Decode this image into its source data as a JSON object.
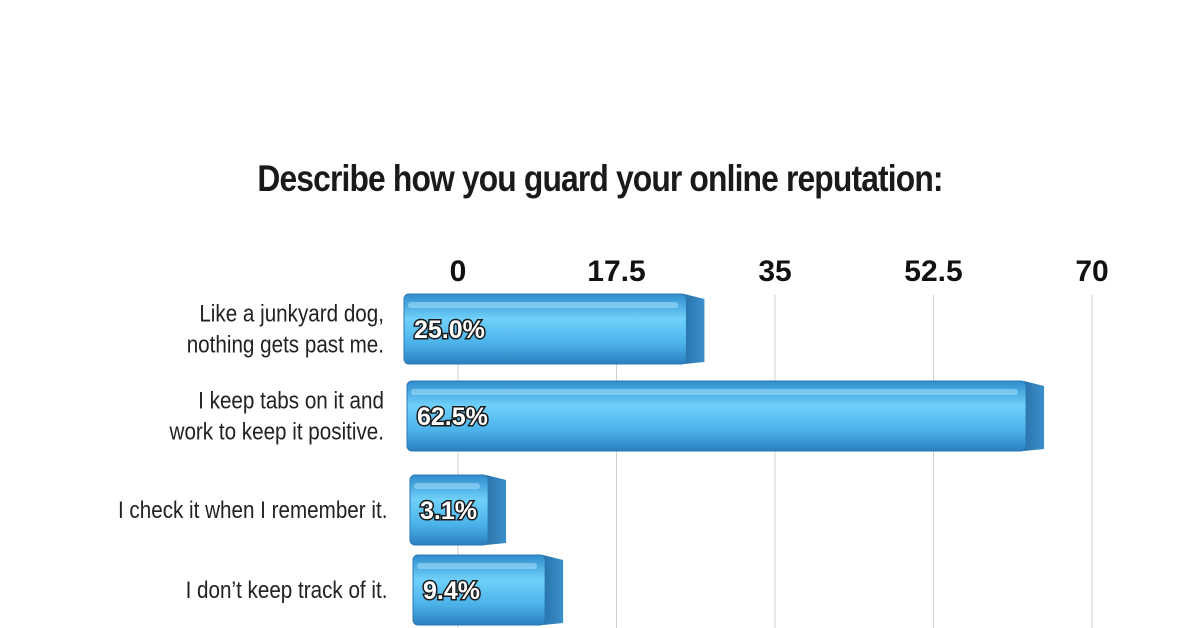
{
  "chart_data": {
    "type": "bar",
    "orientation": "horizontal",
    "title": "Describe how you guard your online reputation:",
    "categories": [
      [
        "Like a junkyard dog,",
        "nothing gets past me."
      ],
      [
        "I keep tabs on it and",
        "work to keep it positive."
      ],
      [
        "I check it when I remember it."
      ],
      [
        "I don’t keep track of it."
      ]
    ],
    "values": [
      25.0,
      62.5,
      3.1,
      9.4
    ],
    "data_labels": [
      "25.0%",
      "62.5%",
      "3.1%",
      "9.4%"
    ],
    "xlim": [
      0,
      70
    ],
    "x_ticks": [
      "0",
      "17.5",
      "35",
      "52.5",
      "70"
    ],
    "tick_values": [
      0,
      17.5,
      35,
      52.5,
      70
    ],
    "grid": true,
    "colors": {
      "bar_front": "#4cb3ea",
      "bar_light": "#7fd2f8",
      "bar_side": "#2f7fb8",
      "bar_top": "#9ddcf9",
      "grid": "#cfcfcf"
    }
  }
}
